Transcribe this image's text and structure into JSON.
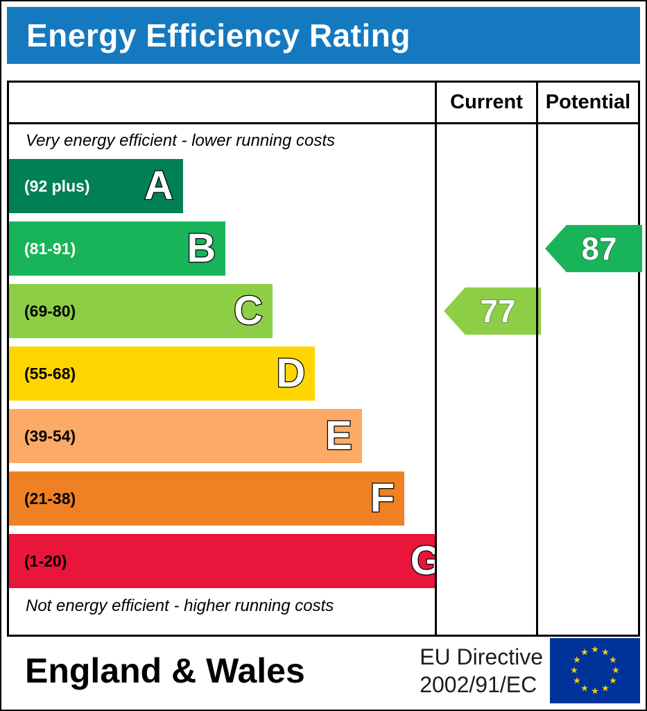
{
  "header": {
    "title": "Energy Efficiency Rating"
  },
  "columns": {
    "current": "Current",
    "potential": "Potential"
  },
  "notes": {
    "top": "Very energy efficient - lower running costs",
    "bottom": "Not energy efficient - higher running costs"
  },
  "bands": [
    {
      "letter": "A",
      "range": "(92 plus)",
      "color": "#008054",
      "width_pct": 35,
      "label_color": "#ffffff"
    },
    {
      "letter": "B",
      "range": "(81-91)",
      "color": "#19b459",
      "width_pct": 45,
      "label_color": "#ffffff"
    },
    {
      "letter": "C",
      "range": "(69-80)",
      "color": "#8dce46",
      "width_pct": 56,
      "label_color": "#000000"
    },
    {
      "letter": "D",
      "range": "(55-68)",
      "color": "#ffd500",
      "width_pct": 66,
      "label_color": "#000000"
    },
    {
      "letter": "E",
      "range": "(39-54)",
      "color": "#fcaa65",
      "width_pct": 77,
      "label_color": "#000000"
    },
    {
      "letter": "F",
      "range": "(21-38)",
      "color": "#ef8023",
      "width_pct": 87,
      "label_color": "#000000"
    },
    {
      "letter": "G",
      "range": "(1-20)",
      "color": "#e9153b",
      "width_pct": 98,
      "label_color": "#000000"
    }
  ],
  "ratings": {
    "current": {
      "value": "77",
      "band": "C",
      "band_index": 2,
      "color": "#8dce46"
    },
    "potential": {
      "value": "87",
      "band": "B",
      "band_index": 1,
      "color": "#19b459"
    }
  },
  "footer": {
    "region": "England & Wales",
    "directive_line1": "EU Directive",
    "directive_line2": "2002/91/EC",
    "eu_flag": {
      "background": "#003399",
      "star_color": "#ffcc00"
    }
  },
  "theme": {
    "header_bg": "#1579bf",
    "header_text": "#ffffff"
  },
  "chart_data": {
    "type": "bar",
    "orientation": "horizontal",
    "title": "Energy Efficiency Rating",
    "categories": [
      "A",
      "B",
      "C",
      "D",
      "E",
      "F",
      "G"
    ],
    "band_ranges": [
      "92 plus",
      "81-91",
      "69-80",
      "55-68",
      "39-54",
      "21-38",
      "1-20"
    ],
    "band_colors": [
      "#008054",
      "#19b459",
      "#8dce46",
      "#ffd500",
      "#fcaa65",
      "#ef8023",
      "#e9153b"
    ],
    "bar_lengths_pct": [
      35,
      45,
      56,
      66,
      77,
      87,
      98
    ],
    "markers": [
      {
        "name": "Current",
        "value": 77,
        "band": "C",
        "color": "#8dce46"
      },
      {
        "name": "Potential",
        "value": 87,
        "band": "B",
        "color": "#19b459"
      }
    ],
    "top_label": "Very energy efficient - lower running costs",
    "bottom_label": "Not energy efficient - higher running costs",
    "footer": "England & Wales — EU Directive 2002/91/EC"
  }
}
